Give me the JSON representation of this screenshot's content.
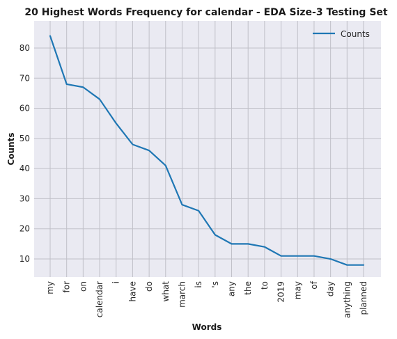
{
  "chart_data": {
    "type": "line",
    "title": "20 Highest Words Frequency for calendar - EDA Size-3 Testing Set",
    "xlabel": "Words",
    "ylabel": "Counts",
    "categories": [
      "my",
      "for",
      "on",
      "calendar",
      "i",
      "have",
      "do",
      "what",
      "march",
      "is",
      "'s",
      "any",
      "the",
      "to",
      "2019",
      "may",
      "of",
      "day",
      "anything",
      "planned"
    ],
    "series": [
      {
        "name": "Counts",
        "values": [
          84,
          68,
          67,
          63,
          55,
          48,
          46,
          41,
          28,
          26,
          18,
          15,
          15,
          14,
          11,
          11,
          11,
          10,
          8,
          8
        ]
      }
    ],
    "ylim": [
      4,
      89
    ],
    "yticks": [
      10,
      20,
      30,
      40,
      50,
      60,
      70,
      80
    ],
    "grid": true,
    "legend_position": "top-right",
    "colors": {
      "line": "#1f77b4",
      "plot_bg": "#eaeaf2",
      "grid": "#c0c0c8"
    }
  }
}
